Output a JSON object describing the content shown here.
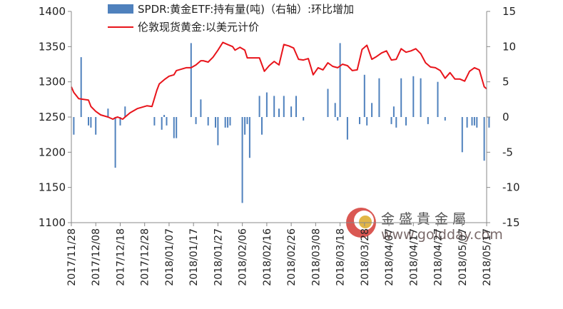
{
  "chart_data": {
    "type": "bar+line",
    "legend": [
      {
        "name": "SPDR:黄金ETF:持有量(吨)（右轴）:环比增加",
        "color": "#4f81bd",
        "kind": "bar"
      },
      {
        "name": "伦敦现货黄金:以美元计价",
        "color": "#e8141b",
        "kind": "line"
      }
    ],
    "y_left": {
      "min": 1100,
      "max": 1400,
      "ticks": [
        "1100",
        "1150",
        "1200",
        "1250",
        "1300",
        "1350",
        "1400"
      ]
    },
    "y_right": {
      "min": -15,
      "max": 15,
      "ticks": [
        "-15",
        "-10",
        "-5",
        "0",
        "5",
        "10",
        "15"
      ]
    },
    "x_tick_labels": [
      "2017/11/28",
      "2017/12/08",
      "2017/12/18",
      "2017/12/28",
      "2018/01/07",
      "2018/01/17",
      "2018/01/27",
      "2018/02/06",
      "2018/02/16",
      "2018/02/26",
      "2018/03/08",
      "2018/03/18",
      "2018/03/28",
      "2018/04/07",
      "2018/04/17",
      "2018/04/27",
      "2018/05/07",
      "2018/05/17"
    ],
    "x_range_days": [
      0,
      170
    ],
    "bar_series": {
      "name": "SPDR:黄金ETF:持有量(吨)（右轴）:环比增加",
      "x_days": [
        1,
        4,
        7,
        8,
        10,
        15,
        18,
        20,
        22,
        34,
        37,
        38,
        39,
        42,
        43,
        49,
        51,
        53,
        56,
        59,
        60,
        63,
        64,
        65,
        70,
        71,
        72,
        73,
        77,
        78,
        80,
        83,
        85,
        87,
        90,
        92,
        95,
        105,
        108,
        109,
        110,
        113,
        118,
        120,
        121,
        123,
        126,
        131,
        132,
        133,
        135,
        137,
        140,
        143,
        146,
        150,
        153,
        160,
        162,
        164,
        165,
        166,
        169,
        171
      ],
      "values": [
        -2.5,
        8.5,
        -1.2,
        -1.5,
        -2.5,
        1.2,
        -7.2,
        -1.2,
        1.5,
        -1.2,
        -1.8,
        0.3,
        -1.2,
        -3.0,
        -3.0,
        10.5,
        -1.0,
        2.5,
        -1.2,
        -1.5,
        -4.0,
        -1.5,
        -1.5,
        -1.2,
        -12.2,
        -2.5,
        -1.0,
        -5.8,
        3.0,
        -2.5,
        3.5,
        3.0,
        1.2,
        3.0,
        1.5,
        3.0,
        -0.5,
        4.0,
        2.0,
        -0.5,
        10.5,
        -3.2,
        -1.0,
        6.0,
        -1.2,
        2.0,
        5.5,
        -1.0,
        1.5,
        -1.5,
        5.5,
        -1.2,
        5.8,
        5.5,
        -1.0,
        5.0,
        -0.5,
        -5.0,
        -1.5,
        -1.2,
        -1.2,
        -1.5,
        -6.2,
        -1.5
      ],
      "axis": "right"
    },
    "line_series": {
      "name": "伦敦现货黄金:以美元计价",
      "x_days": [
        0,
        1,
        3,
        5,
        7,
        8,
        10,
        12,
        13,
        15,
        17,
        18,
        19,
        21,
        22,
        24,
        27,
        29,
        31,
        33,
        35,
        36,
        38,
        40,
        42,
        43,
        45,
        47,
        49,
        51,
        53,
        54,
        56,
        58,
        60,
        62,
        64,
        66,
        67,
        69,
        71,
        72,
        74,
        77,
        79,
        81,
        83,
        85,
        87,
        89,
        91,
        93,
        95,
        97,
        99,
        101,
        103,
        105,
        107,
        109,
        111,
        113,
        115,
        117,
        119,
        121,
        123,
        125,
        127,
        129,
        131,
        133,
        135,
        137,
        139,
        141,
        143,
        145,
        147,
        149,
        151,
        153,
        155,
        157,
        159,
        161,
        163,
        165,
        167,
        169,
        170
      ],
      "values": [
        1293,
        1285,
        1276,
        1275,
        1274,
        1265,
        1258,
        1253,
        1252,
        1250,
        1247,
        1249,
        1250,
        1247,
        1250,
        1256,
        1262,
        1264,
        1266,
        1265,
        1288,
        1297,
        1303,
        1308,
        1310,
        1316,
        1318,
        1320,
        1320,
        1324,
        1330,
        1330,
        1328,
        1335,
        1345,
        1356,
        1353,
        1350,
        1345,
        1349,
        1345,
        1334,
        1334,
        1334,
        1315,
        1323,
        1329,
        1324,
        1353,
        1351,
        1348,
        1332,
        1331,
        1333,
        1310,
        1320,
        1317,
        1327,
        1322,
        1320,
        1325,
        1323,
        1316,
        1317,
        1346,
        1352,
        1332,
        1336,
        1341,
        1344,
        1331,
        1332,
        1347,
        1342,
        1344,
        1347,
        1340,
        1327,
        1321,
        1320,
        1316,
        1305,
        1313,
        1304,
        1304,
        1301,
        1315,
        1320,
        1317,
        1293,
        1290
      ],
      "axis": "left"
    }
  },
  "watermark": {
    "name_cn": "金盛貴金屬",
    "url": "www.goldday.com"
  }
}
